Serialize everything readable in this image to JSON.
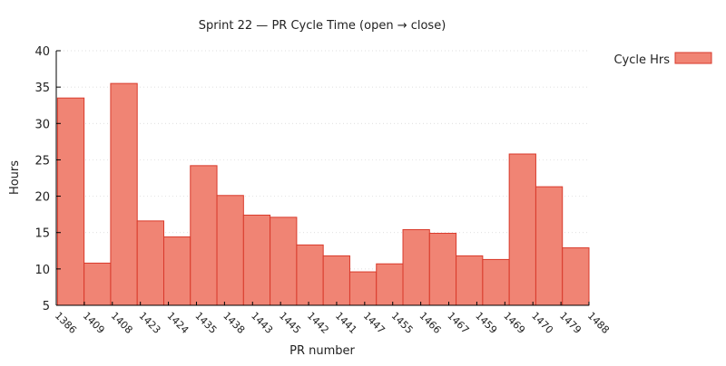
{
  "chart_data": {
    "type": "bar",
    "title": "Sprint 22 — PR Cycle Time (open → close)",
    "xlabel": "PR number",
    "ylabel": "Hours",
    "ylim": [
      5,
      40
    ],
    "yticks": [
      5,
      10,
      15,
      20,
      25,
      30,
      35,
      40
    ],
    "grid": true,
    "legend_position": "top-right",
    "categories": [
      "1386",
      "1409",
      "1408",
      "1423",
      "1424",
      "1435",
      "1438",
      "1443",
      "1445",
      "1442",
      "1441",
      "1447",
      "1455",
      "1466",
      "1467",
      "1459",
      "1469",
      "1470",
      "1479",
      "1488"
    ],
    "series": [
      {
        "name": "Cycle Hrs",
        "color": "#f08474",
        "stroke": "#d93a2b",
        "values": [
          33.5,
          10.8,
          35.5,
          16.6,
          14.4,
          24.2,
          20.1,
          17.4,
          17.1,
          13.3,
          11.8,
          9.6,
          10.7,
          15.4,
          14.9,
          11.8,
          11.3,
          25.8,
          21.3,
          12.9
        ]
      }
    ]
  }
}
